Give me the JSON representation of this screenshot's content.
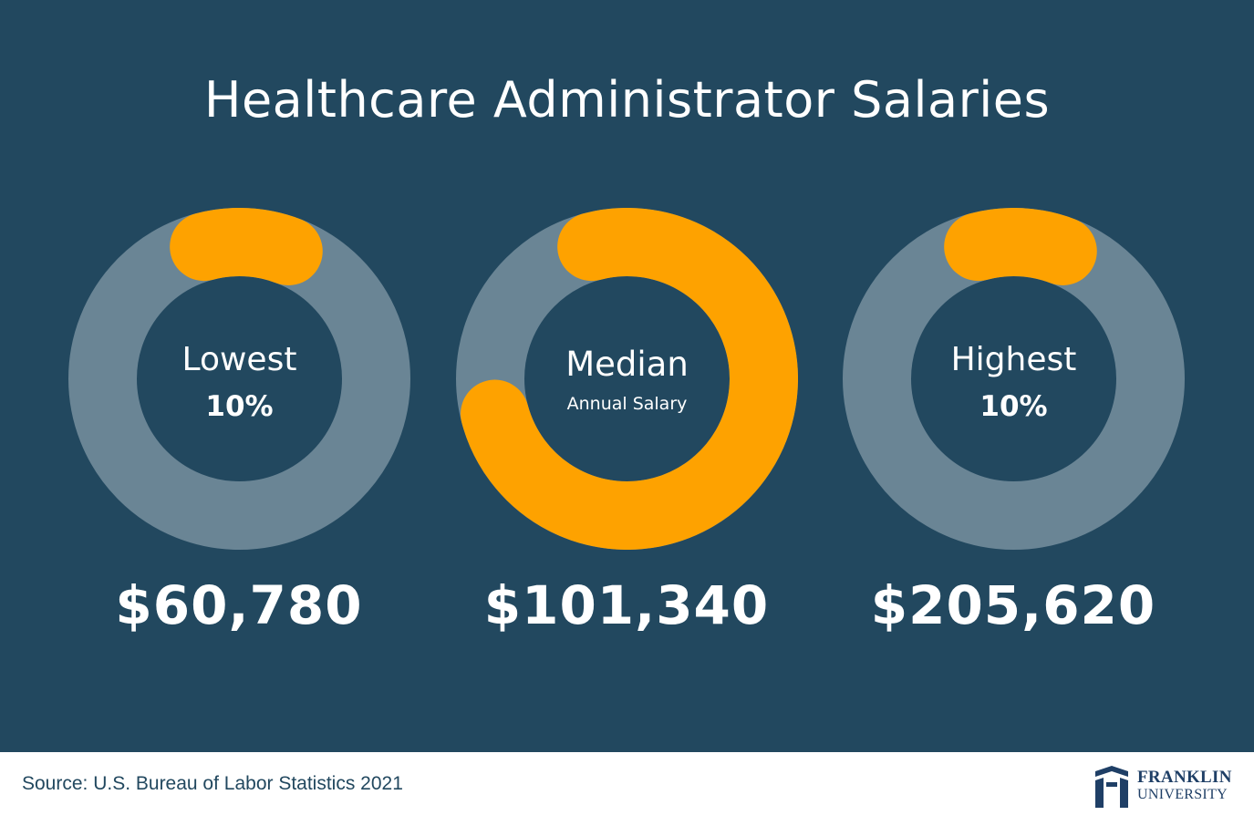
{
  "title": "Healthcare Administrator Salaries",
  "colors": {
    "background": "#22485f",
    "ring_track": "#6a8595",
    "ring_fill": "#fea200",
    "text": "#ffffff",
    "footer_text": "#22485f",
    "logo": "#1f3f66"
  },
  "chart_data": {
    "type": "donut",
    "title": "Healthcare Administrator Salaries",
    "series": [
      {
        "label_main": "Lowest",
        "label_sub": "10%",
        "value_text": "$60,780",
        "value": 60780,
        "fill_fraction": 0.1
      },
      {
        "label_main": "Median",
        "label_sub": "Annual Salary",
        "value_text": "$101,340",
        "value": 101340,
        "fill_fraction": 0.75
      },
      {
        "label_main": "Highest",
        "label_sub": "10%",
        "value_text": "$205,620",
        "value": 205620,
        "fill_fraction": 0.1
      }
    ]
  },
  "footer": {
    "source": "Source: U.S. Bureau of Labor Statistics 2021",
    "logo_line1": "FRANKLIN",
    "logo_line2": "UNIVERSITY"
  }
}
